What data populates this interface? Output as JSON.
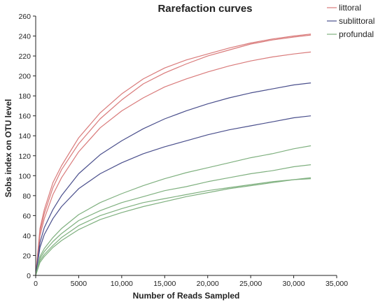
{
  "chart_data": {
    "type": "line",
    "title": "Rarefaction curves",
    "xlabel": "Number of Reads Sampled",
    "ylabel": "Sobs index on OTU level",
    "xlim": [
      0,
      35000
    ],
    "ylim": [
      0,
      260
    ],
    "x_ticks": [
      0,
      5000,
      10000,
      15000,
      20000,
      25000,
      30000,
      35000
    ],
    "x_tick_labels": [
      "0",
      "5000",
      "10,000",
      "15,000",
      "20,000",
      "25,000",
      "30,000",
      "35,000"
    ],
    "y_ticks": [
      0,
      20,
      40,
      60,
      80,
      100,
      120,
      140,
      160,
      180,
      200,
      220,
      240,
      260
    ],
    "y_tick_labels": [
      "0",
      "20",
      "40",
      "60",
      "80",
      "100",
      "120",
      "140",
      "160",
      "180",
      "200",
      "220",
      "240",
      "260"
    ],
    "grid": false,
    "legend": {
      "position": "top-right",
      "entries": [
        {
          "label": "littoral",
          "color": "#d97a7a"
        },
        {
          "label": "sublittoral",
          "color": "#4a4f8c"
        },
        {
          "label": "profundal",
          "color": "#7fb07f"
        }
      ]
    },
    "series": [
      {
        "group": "littoral",
        "color": "#d97a7a",
        "x": [
          0,
          500,
          1000,
          2000,
          3000,
          5000,
          7500,
          10000,
          12500,
          15000,
          17500,
          20000,
          22500,
          25000,
          27500,
          30000,
          32000
        ],
        "y": [
          0,
          47,
          66,
          93,
          110,
          138,
          163,
          182,
          197,
          208,
          216,
          222,
          228,
          233,
          237,
          240,
          242
        ]
      },
      {
        "group": "littoral",
        "color": "#d97a7a",
        "x": [
          0,
          500,
          1000,
          2000,
          3000,
          5000,
          7500,
          10000,
          12500,
          15000,
          17500,
          20000,
          22500,
          25000,
          27500,
          30000,
          32000
        ],
        "y": [
          0,
          44,
          62,
          88,
          106,
          132,
          157,
          176,
          192,
          203,
          212,
          220,
          226,
          232,
          236,
          239,
          241
        ]
      },
      {
        "group": "littoral",
        "color": "#d97a7a",
        "x": [
          0,
          500,
          1000,
          2000,
          3000,
          5000,
          7500,
          10000,
          12500,
          15000,
          17500,
          20000,
          22500,
          25000,
          27500,
          30000,
          32000
        ],
        "y": [
          0,
          40,
          57,
          81,
          98,
          124,
          148,
          165,
          178,
          189,
          197,
          204,
          210,
          215,
          219,
          222,
          224
        ]
      },
      {
        "group": "sublittoral",
        "color": "#4a4f8c",
        "x": [
          0,
          500,
          1000,
          2000,
          3000,
          5000,
          7500,
          10000,
          12500,
          15000,
          17500,
          20000,
          22500,
          25000,
          27500,
          30000,
          32000
        ],
        "y": [
          0,
          33,
          48,
          66,
          80,
          102,
          121,
          135,
          147,
          157,
          165,
          172,
          178,
          183,
          187,
          191,
          193
        ]
      },
      {
        "group": "sublittoral",
        "color": "#4a4f8c",
        "x": [
          0,
          500,
          1000,
          2000,
          3000,
          5000,
          7500,
          10000,
          12500,
          15000,
          17500,
          20000,
          22500,
          25000,
          27500,
          30000,
          32000
        ],
        "y": [
          0,
          28,
          41,
          57,
          69,
          87,
          102,
          113,
          122,
          129,
          135,
          141,
          146,
          150,
          154,
          158,
          160
        ]
      },
      {
        "group": "profundal",
        "color": "#7fb07f",
        "x": [
          0,
          500,
          1000,
          2000,
          3000,
          5000,
          7500,
          10000,
          12500,
          15000,
          17500,
          20000,
          22500,
          25000,
          27500,
          30000,
          32000
        ],
        "y": [
          0,
          19,
          27,
          38,
          47,
          61,
          73,
          82,
          90,
          97,
          103,
          108,
          113,
          118,
          122,
          127,
          130
        ]
      },
      {
        "group": "profundal",
        "color": "#7fb07f",
        "x": [
          0,
          500,
          1000,
          2000,
          3000,
          5000,
          7500,
          10000,
          12500,
          15000,
          17500,
          20000,
          22500,
          25000,
          27500,
          30000,
          32000
        ],
        "y": [
          0,
          17,
          24,
          34,
          42,
          55,
          65,
          73,
          79,
          85,
          89,
          94,
          98,
          102,
          105,
          109,
          111
        ]
      },
      {
        "group": "profundal",
        "color": "#7fb07f",
        "x": [
          0,
          500,
          1000,
          2000,
          3000,
          5000,
          7500,
          10000,
          12500,
          15000,
          17500,
          20000,
          22500,
          25000,
          27500,
          30000,
          32000
        ],
        "y": [
          0,
          15,
          21,
          30,
          38,
          50,
          60,
          67,
          73,
          77,
          81,
          85,
          88,
          91,
          94,
          96,
          98
        ]
      },
      {
        "group": "profundal",
        "color": "#7fb07f",
        "x": [
          0,
          500,
          1000,
          2000,
          3000,
          5000,
          7500,
          10000,
          12500,
          15000,
          17500,
          20000,
          22500,
          25000,
          27500,
          30000,
          32000
        ],
        "y": [
          0,
          13,
          19,
          28,
          35,
          46,
          56,
          63,
          69,
          74,
          79,
          83,
          87,
          90,
          93,
          96,
          97
        ]
      }
    ]
  }
}
